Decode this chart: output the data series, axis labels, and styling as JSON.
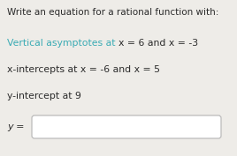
{
  "title_line": "Write an equation for a rational function with:",
  "line1_cyan": "Vertical asymptotes at ",
  "line1_rest": "x = 6 and x = -3",
  "line2": "x-intercepts at x = -6 and x = 5",
  "line3": "y-intercept at 9",
  "label": "y =",
  "bg_color": "#eeece8",
  "text_color": "#2b2b2b",
  "cyan_color": "#3aabb4",
  "box_color": "#ffffff",
  "box_edge_color": "#bbbbbb",
  "title_fontsize": 7.5,
  "body_fontsize": 7.8,
  "label_fontsize": 8.0
}
